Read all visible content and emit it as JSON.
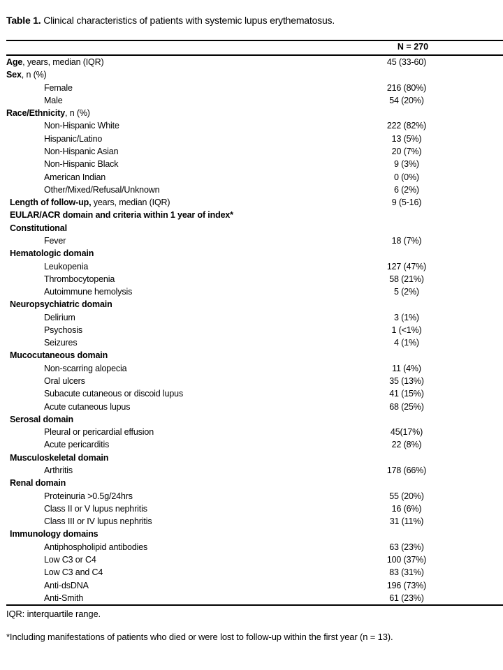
{
  "title": {
    "bold": "Table 1.",
    "text": " Clinical characteristics of patients with systemic lupus erythematosus."
  },
  "header": {
    "n_label": "N = 270"
  },
  "rows": [
    {
      "bold": "Age",
      "rest": ", years, median (IQR)",
      "value": "45 (33-60)",
      "indent": 0
    },
    {
      "bold": "Sex",
      "rest": ", n (%)",
      "value": "",
      "indent": 0
    },
    {
      "bold": "",
      "rest": "Female",
      "value": "216 (80%)",
      "indent": 2
    },
    {
      "bold": "",
      "rest": "Male",
      "value": "54 (20%)",
      "indent": 2
    },
    {
      "bold": "Race/Ethnicity",
      "rest": ", n (%)",
      "value": "",
      "indent": 0
    },
    {
      "bold": "",
      "rest": "Non-Hispanic White",
      "value": "222 (82%)",
      "indent": 2
    },
    {
      "bold": "",
      "rest": "Hispanic/Latino",
      "value": "13 (5%)",
      "indent": 2
    },
    {
      "bold": "",
      "rest": "Non-Hispanic Asian",
      "value": "20 (7%)",
      "indent": 2
    },
    {
      "bold": "",
      "rest": "Non-Hispanic Black",
      "value": "9 (3%)",
      "indent": 2
    },
    {
      "bold": "",
      "rest": "American Indian",
      "value": "0 (0%)",
      "indent": 2
    },
    {
      "bold": "",
      "rest": "Other/Mixed/Refusal/Unknown",
      "value": "6 (2%)",
      "indent": 2
    },
    {
      "bold": "Length of follow-up,",
      "rest": " years, median (IQR)",
      "value": "9 (5-16)",
      "indent": 1
    },
    {
      "bold": "EULAR/ACR domain and criteria within 1 year of index*",
      "rest": "",
      "value": "",
      "indent": 1
    },
    {
      "bold": "Constitutional",
      "rest": "",
      "value": "",
      "indent": 1
    },
    {
      "bold": "",
      "rest": "Fever",
      "value": "18 (7%)",
      "indent": 2
    },
    {
      "bold": "Hematologic domain",
      "rest": "",
      "value": "",
      "indent": 1
    },
    {
      "bold": "",
      "rest": "Leukopenia",
      "value": "127 (47%)",
      "indent": 2
    },
    {
      "bold": "",
      "rest": "Thrombocytopenia",
      "value": "58 (21%)",
      "indent": 2
    },
    {
      "bold": "",
      "rest": "Autoimmune hemolysis",
      "value": "5 (2%)",
      "indent": 2
    },
    {
      "bold": "Neuropsychiatric domain",
      "rest": "",
      "value": "",
      "indent": 1
    },
    {
      "bold": "",
      "rest": "Delirium",
      "value": "3 (1%)",
      "indent": 2
    },
    {
      "bold": "",
      "rest": "Psychosis",
      "value": "1 (<1%)",
      "indent": 2
    },
    {
      "bold": "",
      "rest": "Seizures",
      "value": "4 (1%)",
      "indent": 2
    },
    {
      "bold": "Mucocutaneous domain",
      "rest": "",
      "value": "",
      "indent": 1
    },
    {
      "bold": "",
      "rest": "Non-scarring alopecia",
      "value": "11 (4%)",
      "indent": 2
    },
    {
      "bold": "",
      "rest": "Oral ulcers",
      "value": "35 (13%)",
      "indent": 2
    },
    {
      "bold": "",
      "rest": "Subacute cutaneous or discoid lupus",
      "value": "41 (15%)",
      "indent": 2
    },
    {
      "bold": "",
      "rest": "Acute cutaneous lupus",
      "value": "68 (25%)",
      "indent": 2
    },
    {
      "bold": "Serosal domain",
      "rest": "",
      "value": "",
      "indent": 1
    },
    {
      "bold": "",
      "rest": "Pleural or pericardial effusion",
      "value": "45(17%)",
      "indent": 2
    },
    {
      "bold": "",
      "rest": "Acute pericarditis",
      "value": "22 (8%)",
      "indent": 2
    },
    {
      "bold": "Musculoskeletal domain",
      "rest": "",
      "value": "",
      "indent": 1
    },
    {
      "bold": "",
      "rest": "Arthritis",
      "value": "178 (66%)",
      "indent": 2
    },
    {
      "bold": "Renal domain",
      "rest": "",
      "value": "",
      "indent": 1
    },
    {
      "bold": "",
      "rest": "Proteinuria >0.5g/24hrs",
      "value": "55 (20%)",
      "indent": 2
    },
    {
      "bold": "",
      "rest": "Class II or V lupus nephritis",
      "value": "16 (6%)",
      "indent": 2
    },
    {
      "bold": "",
      "rest": "Class III or IV lupus nephritis",
      "value": "31 (11%)",
      "indent": 2
    },
    {
      "bold": "Immunology domains",
      "rest": "",
      "value": "",
      "indent": 1
    },
    {
      "bold": "",
      "rest": "Antiphospholipid antibodies",
      "value": "63 (23%)",
      "indent": 2
    },
    {
      "bold": "",
      "rest": "Low C3 or C4",
      "value": "100 (37%)",
      "indent": 2
    },
    {
      "bold": "",
      "rest": "Low C3 and C4",
      "value": "83 (31%)",
      "indent": 2
    },
    {
      "bold": "",
      "rest": "Anti-dsDNA",
      "value": "196 (73%)",
      "indent": 2
    },
    {
      "bold": "",
      "rest": "Anti-Smith",
      "value": "61 (23%)",
      "indent": 2
    }
  ],
  "footnotes": [
    "IQR: interquartile range.",
    "*Including manifestations of patients who died or were lost to follow-up within the first year (n = 13)."
  ]
}
